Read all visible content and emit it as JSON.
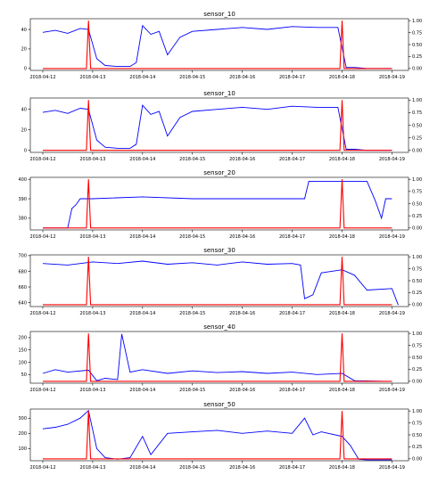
{
  "chart_data": [
    {
      "type": "line",
      "title": "sensor_10",
      "x_ticks": [
        "2018-04-12",
        "2018-04-13",
        "2018-04-14",
        "2018-04-15",
        "2018-04-16",
        "2018-04-17",
        "2018-04-18",
        "2018-04-19"
      ],
      "xlim": [
        "2018-04-11 18:00",
        "2018-04-19 08:00"
      ],
      "y_left": {
        "ticks": [
          "0",
          "20",
          "40"
        ],
        "lim": [
          -2,
          51
        ]
      },
      "y_right": {
        "ticks": [
          "0.00",
          "0.25",
          "0.50",
          "0.75",
          "1.00"
        ],
        "lim": [
          -0.04,
          1.04
        ]
      },
      "colors": {
        "sensor": "#0000ff",
        "flag": "#ff0000"
      },
      "series": [
        {
          "axis": "left",
          "x": [
            "2018-04-12 00:00",
            "2018-04-12 06:00",
            "2018-04-12 12:00",
            "2018-04-12 18:00",
            "2018-04-12 22:00",
            "2018-04-13 02:00",
            "2018-04-13 06:00",
            "2018-04-13 12:00",
            "2018-04-13 18:00",
            "2018-04-13 21:00",
            "2018-04-14 00:00",
            "2018-04-14 04:00",
            "2018-04-14 08:00",
            "2018-04-14 12:00",
            "2018-04-14 18:00",
            "2018-04-15 00:00",
            "2018-04-15 12:00",
            "2018-04-16 00:00",
            "2018-04-16 12:00",
            "2018-04-17 00:00",
            "2018-04-17 12:00",
            "2018-04-17 22:00",
            "2018-04-18 02:00",
            "2018-04-18 06:00",
            "2018-04-18 12:00",
            "2018-04-19 00:00"
          ],
          "values": [
            37,
            39,
            36,
            41,
            40,
            10,
            3,
            2,
            2,
            6,
            44,
            35,
            38,
            14,
            32,
            38,
            40,
            42,
            40,
            43,
            42,
            42,
            1,
            1,
            0,
            0
          ]
        },
        {
          "axis": "right",
          "x": [
            "2018-04-12 00:00",
            "2018-04-12 21:00",
            "2018-04-12 22:00",
            "2018-04-12 23:00",
            "2018-04-17 23:00",
            "2018-04-18 00:00",
            "2018-04-18 01:00",
            "2018-04-19 00:00"
          ],
          "values": [
            0,
            0,
            1.0,
            0,
            0,
            1.0,
            0,
            0
          ]
        }
      ]
    },
    {
      "type": "line",
      "title": "sensor_10",
      "x_ticks": [
        "2018-04-12",
        "2018-04-13",
        "2018-04-14",
        "2018-04-15",
        "2018-04-16",
        "2018-04-17",
        "2018-04-18",
        "2018-04-19"
      ],
      "xlim": [
        "2018-04-11 18:00",
        "2018-04-19 08:00"
      ],
      "y_left": {
        "ticks": [
          "0",
          "20",
          "40"
        ],
        "lim": [
          -2,
          51
        ]
      },
      "y_right": {
        "ticks": [
          "0.00",
          "0.25",
          "0.50",
          "0.75",
          "1.00"
        ],
        "lim": [
          -0.04,
          1.04
        ]
      },
      "colors": {
        "sensor": "#0000ff",
        "flag": "#ff0000"
      },
      "series": [
        {
          "axis": "left",
          "x": [
            "2018-04-12 00:00",
            "2018-04-12 06:00",
            "2018-04-12 12:00",
            "2018-04-12 18:00",
            "2018-04-12 22:00",
            "2018-04-13 02:00",
            "2018-04-13 06:00",
            "2018-04-13 12:00",
            "2018-04-13 18:00",
            "2018-04-13 21:00",
            "2018-04-14 00:00",
            "2018-04-14 04:00",
            "2018-04-14 08:00",
            "2018-04-14 12:00",
            "2018-04-14 18:00",
            "2018-04-15 00:00",
            "2018-04-15 12:00",
            "2018-04-16 00:00",
            "2018-04-16 12:00",
            "2018-04-17 00:00",
            "2018-04-17 12:00",
            "2018-04-17 22:00",
            "2018-04-18 02:00",
            "2018-04-18 06:00",
            "2018-04-18 12:00",
            "2018-04-19 00:00"
          ],
          "values": [
            37,
            39,
            36,
            41,
            40,
            10,
            3,
            2,
            2,
            6,
            44,
            35,
            38,
            14,
            32,
            38,
            40,
            42,
            40,
            43,
            42,
            42,
            1,
            1,
            0,
            0
          ]
        },
        {
          "axis": "right",
          "x": [
            "2018-04-12 00:00",
            "2018-04-12 21:00",
            "2018-04-12 22:00",
            "2018-04-12 23:00",
            "2018-04-17 23:00",
            "2018-04-18 00:00",
            "2018-04-18 01:00",
            "2018-04-19 00:00"
          ],
          "values": [
            0,
            0,
            1.0,
            0,
            0,
            1.0,
            0,
            0
          ]
        }
      ]
    },
    {
      "type": "line",
      "title": "sensor_20",
      "x_ticks": [
        "2018-04-12",
        "2018-04-13",
        "2018-04-14",
        "2018-04-15",
        "2018-04-16",
        "2018-04-17",
        "2018-04-18",
        "2018-04-19"
      ],
      "xlim": [
        "2018-04-11 18:00",
        "2018-04-19 08:00"
      ],
      "y_left": {
        "ticks": [
          "380",
          "390",
          "400"
        ],
        "lim": [
          374,
          401
        ]
      },
      "y_right": {
        "ticks": [
          "0.00",
          "0.25",
          "0.50",
          "0.75",
          "1.00"
        ],
        "lim": [
          -0.04,
          1.04
        ]
      },
      "colors": {
        "sensor": "#0000ff",
        "flag": "#ff0000"
      },
      "series": [
        {
          "axis": "left",
          "x": [
            "2018-04-12 00:00",
            "2018-04-12 12:00",
            "2018-04-12 14:00",
            "2018-04-12 16:00",
            "2018-04-12 18:00",
            "2018-04-13 00:00",
            "2018-04-14 00:00",
            "2018-04-15 00:00",
            "2018-04-16 00:00",
            "2018-04-17 00:00",
            "2018-04-17 06:00",
            "2018-04-17 08:00",
            "2018-04-17 12:00",
            "2018-04-18 00:00",
            "2018-04-18 12:00",
            "2018-04-18 16:00",
            "2018-04-18 19:00",
            "2018-04-18 21:00",
            "2018-04-19 00:00"
          ],
          "values": [
            375,
            375,
            385,
            387,
            390,
            390,
            391,
            390,
            390,
            390,
            390,
            399,
            399,
            399,
            399,
            389,
            380,
            390,
            390
          ]
        },
        {
          "axis": "right",
          "x": [
            "2018-04-12 00:00",
            "2018-04-12 21:00",
            "2018-04-12 22:00",
            "2018-04-12 23:00",
            "2018-04-17 23:00",
            "2018-04-18 00:00",
            "2018-04-18 01:00",
            "2018-04-19 00:00"
          ],
          "values": [
            0,
            0,
            1.0,
            0,
            0,
            1.0,
            0,
            0
          ]
        }
      ]
    },
    {
      "type": "line",
      "title": "sensor_30",
      "x_ticks": [
        "2018-04-12",
        "2018-04-13",
        "2018-04-14",
        "2018-04-15",
        "2018-04-16",
        "2018-04-17",
        "2018-04-18",
        "2018-04-19"
      ],
      "xlim": [
        "2018-04-11 18:00",
        "2018-04-19 08:00"
      ],
      "y_left": {
        "ticks": [
          "640",
          "660",
          "680",
          "700"
        ],
        "lim": [
          635,
          701
        ]
      },
      "y_right": {
        "ticks": [
          "0.00",
          "0.25",
          "0.50",
          "0.75",
          "1.00"
        ],
        "lim": [
          -0.04,
          1.04
        ]
      },
      "colors": {
        "sensor": "#0000ff",
        "flag": "#ff0000"
      },
      "series": [
        {
          "axis": "left",
          "x": [
            "2018-04-12 00:00",
            "2018-04-12 12:00",
            "2018-04-13 00:00",
            "2018-04-13 12:00",
            "2018-04-14 00:00",
            "2018-04-14 12:00",
            "2018-04-15 00:00",
            "2018-04-15 12:00",
            "2018-04-16 00:00",
            "2018-04-16 12:00",
            "2018-04-17 00:00",
            "2018-04-17 04:00",
            "2018-04-17 06:00",
            "2018-04-17 10:00",
            "2018-04-17 14:00",
            "2018-04-18 00:00",
            "2018-04-18 06:00",
            "2018-04-18 12:00",
            "2018-04-19 00:00",
            "2018-04-19 03:00"
          ],
          "values": [
            690,
            688,
            692,
            690,
            693,
            689,
            691,
            688,
            692,
            689,
            690,
            688,
            645,
            650,
            678,
            682,
            675,
            656,
            658,
            637
          ]
        },
        {
          "axis": "right",
          "x": [
            "2018-04-12 00:00",
            "2018-04-12 21:00",
            "2018-04-12 22:00",
            "2018-04-12 23:00",
            "2018-04-17 23:00",
            "2018-04-18 00:00",
            "2018-04-18 01:00",
            "2018-04-19 00:00"
          ],
          "values": [
            0,
            0,
            1.0,
            0,
            0,
            1.0,
            0,
            0
          ]
        }
      ]
    },
    {
      "type": "line",
      "title": "sensor_40",
      "x_ticks": [
        "2018-04-12",
        "2018-04-13",
        "2018-04-14",
        "2018-04-15",
        "2018-04-16",
        "2018-04-17",
        "2018-04-18",
        "2018-04-19"
      ],
      "xlim": [
        "2018-04-11 18:00",
        "2018-04-19 08:00"
      ],
      "y_left": {
        "ticks": [
          "50",
          "100",
          "150",
          "200"
        ],
        "lim": [
          15,
          225
        ]
      },
      "y_right": {
        "ticks": [
          "0.00",
          "0.25",
          "0.50",
          "0.75",
          "1.00"
        ],
        "lim": [
          -0.04,
          1.04
        ]
      },
      "colors": {
        "sensor": "#0000ff",
        "flag": "#ff0000"
      },
      "series": [
        {
          "axis": "left",
          "x": [
            "2018-04-12 00:00",
            "2018-04-12 06:00",
            "2018-04-12 12:00",
            "2018-04-12 22:00",
            "2018-04-13 02:00",
            "2018-04-13 06:00",
            "2018-04-13 12:00",
            "2018-04-13 14:00",
            "2018-04-13 18:00",
            "2018-04-14 00:00",
            "2018-04-14 12:00",
            "2018-04-15 00:00",
            "2018-04-15 12:00",
            "2018-04-16 00:00",
            "2018-04-16 12:00",
            "2018-04-17 00:00",
            "2018-04-17 12:00",
            "2018-04-18 00:00",
            "2018-04-18 06:00",
            "2018-04-18 12:00",
            "2018-04-19 00:00"
          ],
          "values": [
            55,
            70,
            60,
            68,
            25,
            35,
            30,
            215,
            60,
            70,
            55,
            65,
            58,
            62,
            55,
            60,
            50,
            55,
            25,
            24,
            22
          ]
        },
        {
          "axis": "right",
          "x": [
            "2018-04-12 00:00",
            "2018-04-12 21:00",
            "2018-04-12 22:00",
            "2018-04-12 23:00",
            "2018-04-17 23:00",
            "2018-04-18 00:00",
            "2018-04-18 01:00",
            "2018-04-19 00:00"
          ],
          "values": [
            0,
            0,
            1.0,
            0,
            0,
            1.0,
            0,
            0
          ]
        }
      ]
    },
    {
      "type": "line",
      "title": "sensor_50",
      "x_ticks": [
        "2018-04-12",
        "2018-04-13",
        "2018-04-14",
        "2018-04-15",
        "2018-04-16",
        "2018-04-17",
        "2018-04-18",
        "2018-04-19"
      ],
      "xlim": [
        "2018-04-11 18:00",
        "2018-04-19 08:00"
      ],
      "y_left": {
        "ticks": [
          "100",
          "200",
          "300"
        ],
        "lim": [
          20,
          360
        ]
      },
      "y_right": {
        "ticks": [
          "0.00",
          "0.25",
          "0.50",
          "0.75",
          "1.00"
        ],
        "lim": [
          -0.04,
          1.04
        ]
      },
      "colors": {
        "sensor": "#0000ff",
        "flag": "#ff0000"
      },
      "series": [
        {
          "axis": "left",
          "x": [
            "2018-04-12 00:00",
            "2018-04-12 06:00",
            "2018-04-12 12:00",
            "2018-04-12 18:00",
            "2018-04-12 22:00",
            "2018-04-13 02:00",
            "2018-04-13 06:00",
            "2018-04-13 12:00",
            "2018-04-13 18:00",
            "2018-04-14 00:00",
            "2018-04-14 04:00",
            "2018-04-14 12:00",
            "2018-04-15 00:00",
            "2018-04-15 12:00",
            "2018-04-16 00:00",
            "2018-04-16 12:00",
            "2018-04-17 00:00",
            "2018-04-17 06:00",
            "2018-04-17 10:00",
            "2018-04-17 14:00",
            "2018-04-18 00:00",
            "2018-04-18 04:00",
            "2018-04-18 08:00",
            "2018-04-18 12:00",
            "2018-04-19 00:00"
          ],
          "values": [
            230,
            240,
            260,
            300,
            350,
            100,
            40,
            30,
            40,
            180,
            60,
            200,
            210,
            220,
            200,
            215,
            200,
            300,
            190,
            210,
            180,
            120,
            30,
            25,
            25
          ]
        },
        {
          "axis": "right",
          "x": [
            "2018-04-12 00:00",
            "2018-04-12 21:00",
            "2018-04-12 22:00",
            "2018-04-12 23:00",
            "2018-04-17 23:00",
            "2018-04-18 00:00",
            "2018-04-18 01:00",
            "2018-04-19 00:00"
          ],
          "values": [
            0,
            0,
            1.0,
            0,
            0,
            1.0,
            0,
            0
          ]
        }
      ]
    }
  ]
}
